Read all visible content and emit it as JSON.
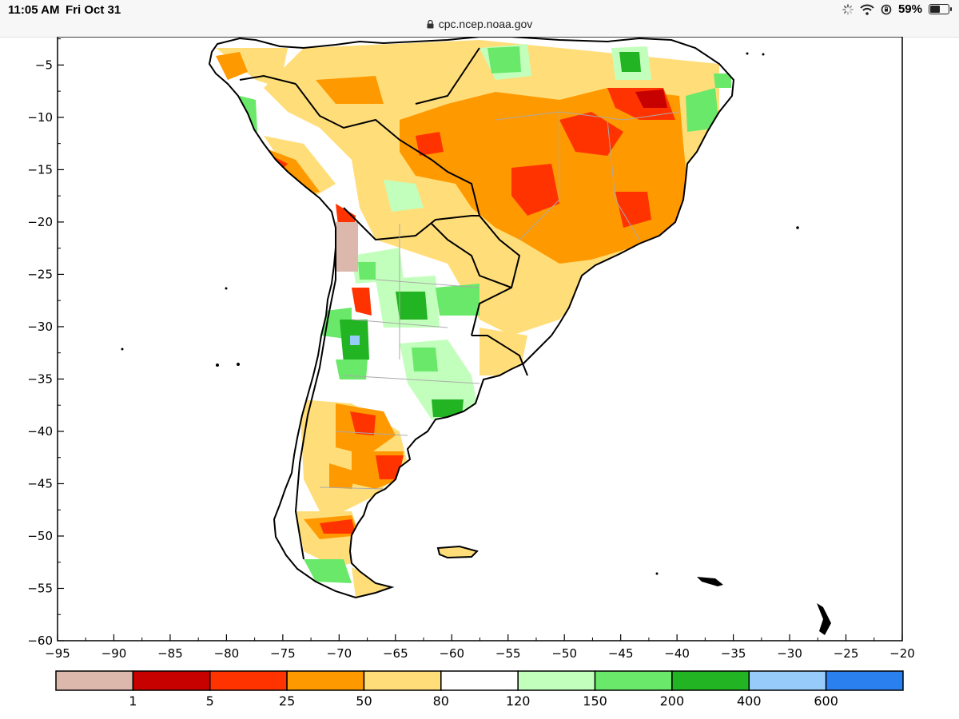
{
  "status_bar": {
    "time": "11:05 AM",
    "date": "Fri Oct 31",
    "url": "cpc.ncep.noaa.gov",
    "battery_label": "59%",
    "battery_level": 0.59
  },
  "map": {
    "x_axis": {
      "range": [
        -95,
        -20
      ],
      "ticks": [
        "−95",
        "−90",
        "−85",
        "−80",
        "−75",
        "−70",
        "−65",
        "−60",
        "−55",
        "−50",
        "−45",
        "−40",
        "−35",
        "−30",
        "−25",
        "−20"
      ]
    },
    "y_axis": {
      "range": [
        -60,
        -2.3
      ],
      "ticks": [
        "−5",
        "−10",
        "−15",
        "−20",
        "−25",
        "−30",
        "−35",
        "−40",
        "−45",
        "−50",
        "−55",
        "−60"
      ]
    }
  },
  "legend": {
    "colors": [
      "#dbb7ac",
      "#c70000",
      "#ff3300",
      "#ff9900",
      "#ffde7a",
      "#ffffff",
      "#c3ffbc",
      "#6ae86a",
      "#22b422",
      "#96cbfa",
      "#2b80f0"
    ],
    "labels": [
      "1",
      "5",
      "25",
      "50",
      "80",
      "120",
      "150",
      "200",
      "400",
      "600"
    ]
  }
}
